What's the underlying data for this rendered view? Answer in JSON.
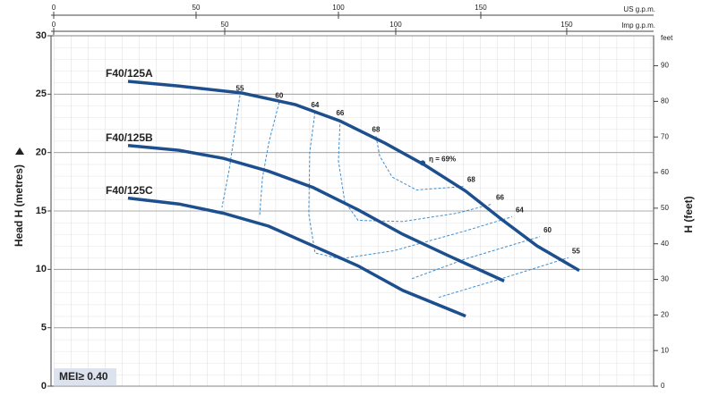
{
  "chart_data": {
    "type": "line",
    "y_label": "Head H (metres)",
    "y2_label": "H (feet)",
    "y2_unit": "feet",
    "x_label": "US g.p.m.",
    "x2_label": "Imp g.p.m.",
    "xlim": [
      0,
      210.7
    ],
    "xticks": [
      0,
      50,
      100,
      150
    ],
    "x2lim": [
      0,
      175.4
    ],
    "x2ticks": [
      0,
      50,
      100,
      150
    ],
    "ylim": [
      0,
      30
    ],
    "yticks": [
      0,
      5,
      10,
      15,
      20,
      25,
      30
    ],
    "y2lim": [
      0,
      98.43
    ],
    "y2ticks": [
      0,
      10,
      20,
      30,
      40,
      50,
      60,
      70,
      80,
      90
    ],
    "grid": true,
    "series": [
      {
        "name": "F40/125A",
        "color": "#1d4f8e",
        "x": [
          26.1,
          44.0,
          66.0,
          84.9,
          100.6,
          116.4,
          130.5,
          144.7,
          157.2,
          169.8,
          184.6
        ],
        "values": [
          26.1,
          25.7,
          25.1,
          24.1,
          22.7,
          20.8,
          18.9,
          16.7,
          14.3,
          12.0,
          9.9
        ]
      },
      {
        "name": "F40/125B",
        "color": "#1d4f8e",
        "x": [
          26.1,
          44.0,
          59.7,
          75.5,
          91.2,
          106.9,
          122.6,
          138.4,
          158.2
        ],
        "values": [
          20.6,
          20.2,
          19.5,
          18.4,
          17.0,
          15.1,
          13.0,
          11.2,
          9.0
        ]
      },
      {
        "name": "F40/125C",
        "color": "#1d4f8e",
        "x": [
          26.1,
          44.0,
          59.7,
          75.5,
          91.2,
          106.9,
          122.6,
          144.7
        ],
        "values": [
          16.1,
          15.6,
          14.8,
          13.7,
          12.0,
          10.3,
          8.2,
          6.0
        ]
      }
    ],
    "efficiency_color": "#3b8fd3",
    "efficiency_lines": [
      {
        "label": "55",
        "x": [
          65.4,
          63.5,
          61.6,
          59.1,
          null,
          135.2,
          157.2,
          180.8
        ],
        "values": [
          24.9,
          21.6,
          18.5,
          15.3,
          null,
          7.6,
          9.2,
          11.0
        ]
      },
      {
        "label": "60",
        "x": [
          79.2,
          75.5,
          73.3,
          72.3,
          null,
          125.8,
          144.7,
          170.8
        ],
        "values": [
          24.3,
          20.8,
          17.8,
          14.5,
          null,
          9.2,
          10.9,
          12.8
        ]
      },
      {
        "label": "64",
        "x": [
          91.8,
          89.9,
          89.6,
          91.8,
          100.6,
          119.5,
          144.7,
          161.0
        ],
        "values": [
          23.5,
          20.0,
          14.7,
          11.4,
          10.9,
          11.6,
          13.3,
          14.5
        ]
      },
      {
        "label": "66",
        "x": [
          100.6,
          100.0,
          102.2,
          106.9,
          122.6,
          141.5,
          154.1
        ],
        "values": [
          22.8,
          19.3,
          15.8,
          14.2,
          14.1,
          14.8,
          15.6
        ]
      },
      {
        "label": "68",
        "x": [
          113.2,
          114.5,
          118.9,
          127.4,
          144.0
        ],
        "values": [
          21.4,
          19.7,
          17.9,
          16.8,
          17.1
        ]
      }
    ],
    "peak": {
      "label": "η = 69%",
      "x": 129.6,
      "value": 19.1
    },
    "badge": "MEI≥ 0.40"
  }
}
